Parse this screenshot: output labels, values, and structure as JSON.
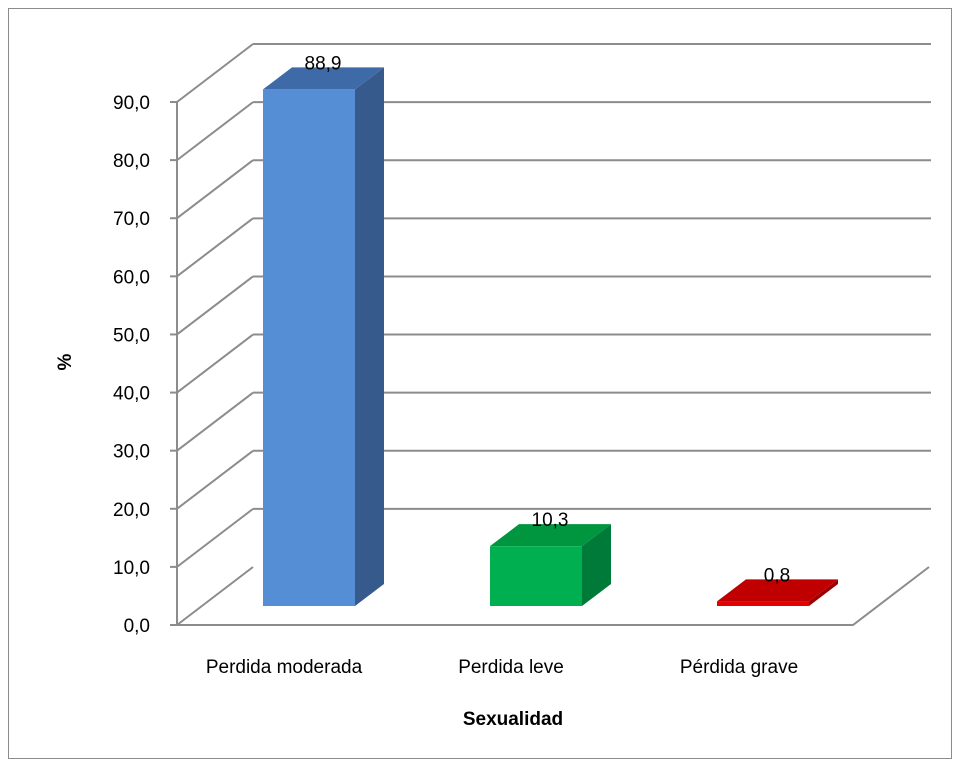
{
  "chart_data": {
    "type": "bar",
    "three_d": true,
    "categories": [
      "Perdida moderada",
      "Perdida leve",
      "Pérdida grave"
    ],
    "values": [
      88.9,
      10.3,
      0.8
    ],
    "data_labels": [
      "88,9",
      "10,3",
      "0,8"
    ],
    "title": "",
    "xlabel": "Sexualidad",
    "ylabel": "%",
    "ylim": [
      0,
      90
    ],
    "yticks": [
      "0,0",
      "10,0",
      "20,0",
      "30,0",
      "40,0",
      "50,0",
      "60,0",
      "70,0",
      "80,0",
      "90,0"
    ],
    "grid": true,
    "legend": "none",
    "colors": {
      "bars": [
        {
          "front": "#558ed5",
          "side": "#365a8c",
          "top": "#3e6aa7"
        },
        {
          "front": "#00b050",
          "side": "#007a38",
          "top": "#00963f"
        },
        {
          "front": "#e00000",
          "side": "#9c0000",
          "top": "#c00000"
        }
      ],
      "grid": "#8c8c8c"
    }
  }
}
